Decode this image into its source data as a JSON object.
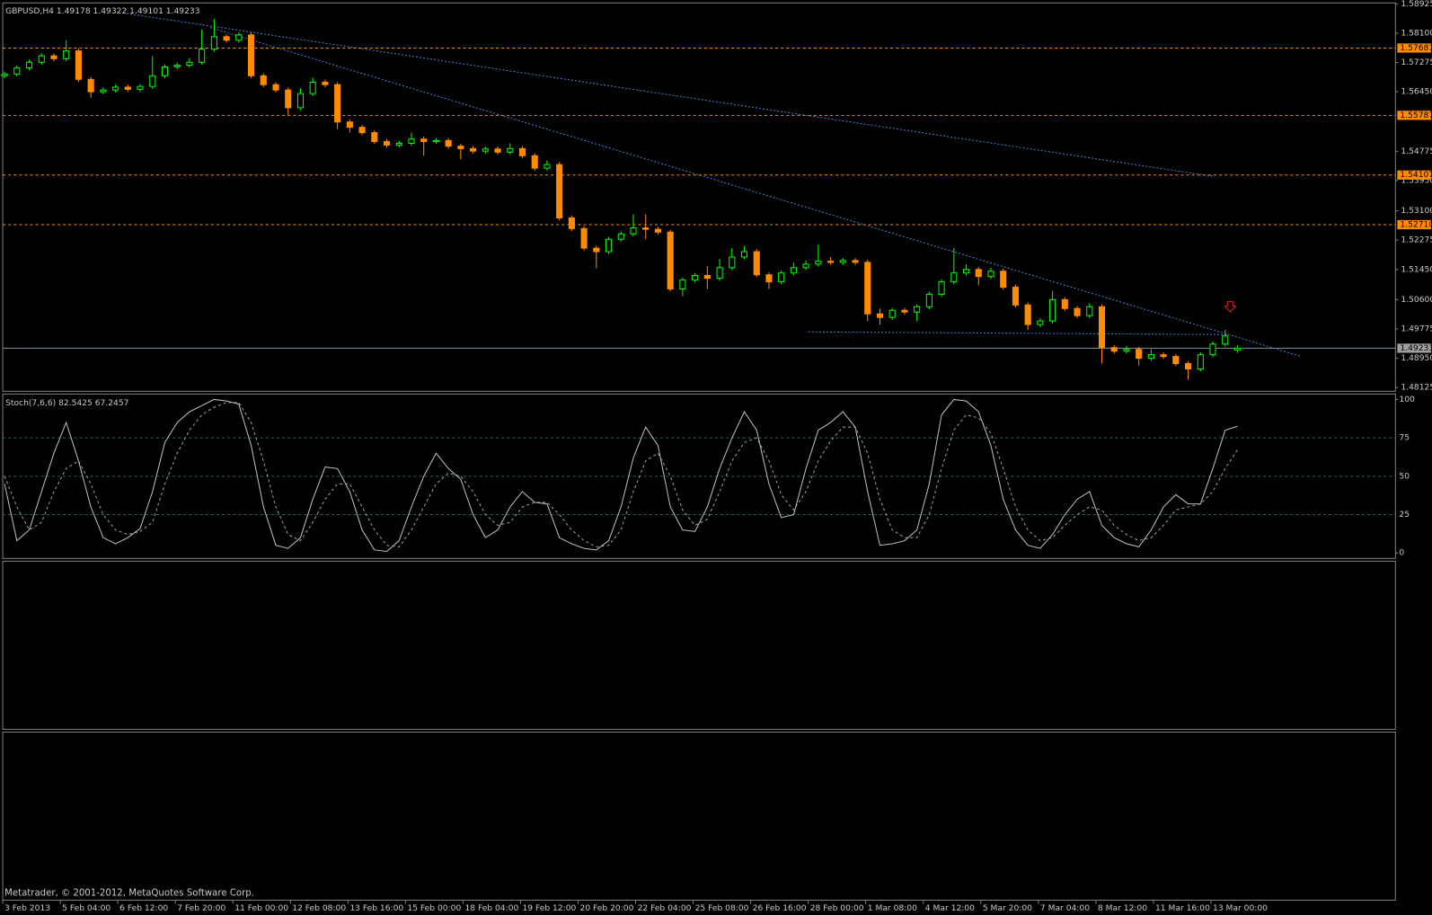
{
  "chart_data": {
    "type": "candlestick",
    "title": "GBPUSD,H4  1.49178 1.49322 1.49101 1.49233",
    "footer": "Metatrader, © 2001-2012, MetaQuotes Software Corp.",
    "bull_color": "#00ff00",
    "bear_color": "#ff8c00",
    "level_color": "#ff8c00",
    "open": [
      1.569,
      1.5695,
      1.5712,
      1.5728,
      1.5746,
      1.5738,
      1.576,
      1.568,
      1.5645,
      1.565,
      1.5658,
      1.5652,
      1.566,
      1.569,
      1.5715,
      1.572,
      1.5728,
      1.5765,
      1.58,
      1.579,
      1.5805,
      1.569,
      1.5665,
      1.565,
      1.56,
      1.564,
      1.5672,
      1.5665,
      1.556,
      1.5545,
      1.553,
      1.5505,
      1.5495,
      1.55,
      1.5512,
      1.5505,
      1.5508,
      1.5492,
      1.5485,
      1.5478,
      1.5484,
      1.5475,
      1.5485,
      1.5465,
      1.543,
      1.544,
      1.529,
      1.526,
      1.5205,
      1.5195,
      1.523,
      1.5245,
      1.5262,
      1.5258,
      1.525,
      1.509,
      1.5115,
      1.5128,
      1.512,
      1.515,
      1.518,
      1.5195,
      1.513,
      1.511,
      1.5135,
      1.515,
      1.516,
      1.5168,
      1.5165,
      1.517,
      1.5165,
      1.502,
      1.501,
      1.503,
      1.5025,
      1.504,
      1.5075,
      1.511,
      1.5135,
      1.5145,
      1.5125,
      1.514,
      1.5095,
      1.5045,
      1.499,
      1.5,
      1.506,
      1.5035,
      1.5015,
      1.504,
      1.4925,
      1.4915,
      1.492,
      1.4895,
      1.4905,
      1.49,
      1.488,
      1.4865,
      1.4905,
      1.4935,
      1.49178
    ],
    "high": [
      1.5702,
      1.5719,
      1.5735,
      1.5753,
      1.5753,
      1.579,
      1.5767,
      1.5687,
      1.5657,
      1.5665,
      1.5665,
      1.5667,
      1.5745,
      1.5722,
      1.5727,
      1.574,
      1.582,
      1.585,
      1.5807,
      1.5812,
      1.5812,
      1.5697,
      1.5672,
      1.5657,
      1.5655,
      1.5685,
      1.5679,
      1.5672,
      1.5567,
      1.5552,
      1.5537,
      1.5512,
      1.5507,
      1.553,
      1.5519,
      1.5515,
      1.5515,
      1.5499,
      1.5492,
      1.5491,
      1.5491,
      1.55,
      1.5492,
      1.5472,
      1.5452,
      1.5447,
      1.5297,
      1.5267,
      1.5212,
      1.5237,
      1.5252,
      1.53,
      1.53,
      1.5265,
      1.5257,
      1.5122,
      1.5135,
      1.5155,
      1.5175,
      1.5205,
      1.521,
      1.5202,
      1.5137,
      1.5142,
      1.5165,
      1.517,
      1.5215,
      1.518,
      1.5177,
      1.5177,
      1.5172,
      1.5035,
      1.5037,
      1.5037,
      1.5047,
      1.5082,
      1.5117,
      1.5205,
      1.516,
      1.5152,
      1.515,
      1.5147,
      1.5102,
      1.5052,
      1.5007,
      1.5085,
      1.5067,
      1.5042,
      1.505,
      1.5047,
      1.4932,
      1.493,
      1.4927,
      1.492,
      1.4912,
      1.4907,
      1.4887,
      1.4912,
      1.4942,
      1.4975,
      1.49322
    ],
    "low": [
      1.5683,
      1.5688,
      1.5705,
      1.5721,
      1.5731,
      1.5731,
      1.5673,
      1.5628,
      1.5638,
      1.5643,
      1.5645,
      1.5645,
      1.5653,
      1.5683,
      1.5708,
      1.5713,
      1.5721,
      1.5758,
      1.5783,
      1.5783,
      1.5683,
      1.5658,
      1.5643,
      1.558,
      1.5593,
      1.5633,
      1.5658,
      1.554,
      1.553,
      1.5523,
      1.5498,
      1.5488,
      1.5488,
      1.5493,
      1.5465,
      1.5498,
      1.5485,
      1.5455,
      1.5471,
      1.5471,
      1.5468,
      1.5468,
      1.5458,
      1.5423,
      1.5423,
      1.5283,
      1.5253,
      1.5198,
      1.5148,
      1.5188,
      1.5223,
      1.5238,
      1.523,
      1.5243,
      1.5083,
      1.507,
      1.5108,
      1.509,
      1.5113,
      1.5143,
      1.5173,
      1.5123,
      1.509,
      1.5103,
      1.5128,
      1.5143,
      1.5153,
      1.5158,
      1.5158,
      1.5158,
      1.5,
      1.499,
      1.5003,
      1.5018,
      1.5,
      1.5033,
      1.5068,
      1.5103,
      1.5128,
      1.51,
      1.5118,
      1.5088,
      1.5038,
      1.4975,
      1.4983,
      1.4993,
      1.5028,
      1.5008,
      1.5008,
      1.488,
      1.4908,
      1.4908,
      1.4875,
      1.4888,
      1.4893,
      1.4873,
      1.4835,
      1.4858,
      1.4898,
      1.4928,
      1.49101
    ],
    "close": [
      1.5695,
      1.5712,
      1.5728,
      1.5746,
      1.5738,
      1.576,
      1.568,
      1.5645,
      1.565,
      1.5658,
      1.5652,
      1.566,
      1.569,
      1.5715,
      1.572,
      1.5728,
      1.5765,
      1.58,
      1.579,
      1.5805,
      1.569,
      1.5665,
      1.565,
      1.56,
      1.564,
      1.5672,
      1.5665,
      1.556,
      1.5545,
      1.553,
      1.5505,
      1.5495,
      1.55,
      1.5512,
      1.5505,
      1.5508,
      1.5492,
      1.5485,
      1.5478,
      1.5484,
      1.5475,
      1.5485,
      1.5465,
      1.543,
      1.544,
      1.529,
      1.526,
      1.5205,
      1.5195,
      1.523,
      1.5245,
      1.5262,
      1.5258,
      1.525,
      1.509,
      1.5115,
      1.5128,
      1.512,
      1.515,
      1.518,
      1.5195,
      1.513,
      1.511,
      1.5135,
      1.515,
      1.516,
      1.5168,
      1.5165,
      1.517,
      1.5165,
      1.502,
      1.501,
      1.503,
      1.5025,
      1.504,
      1.5075,
      1.511,
      1.5135,
      1.5145,
      1.5125,
      1.514,
      1.5095,
      1.5045,
      1.499,
      1.5,
      1.506,
      1.5035,
      1.5015,
      1.504,
      1.4925,
      1.4915,
      1.492,
      1.4895,
      1.4905,
      1.49,
      1.488,
      1.4865,
      1.4905,
      1.4935,
      1.4958,
      1.49233
    ],
    "ylim": [
      1.48125,
      1.58925
    ],
    "yticks": [
      {
        "value": 1.58925,
        "label": "1.58925"
      },
      {
        "value": 1.581,
        "label": "1.58100"
      },
      {
        "value": 1.57275,
        "label": "1.57275"
      },
      {
        "value": 1.5645,
        "label": "1.56450"
      },
      {
        "value": 1.54775,
        "label": "1.54775"
      },
      {
        "value": 1.5395,
        "label": "1.53950"
      },
      {
        "value": 1.531,
        "label": "1.53100"
      },
      {
        "value": 1.52275,
        "label": "1.52275"
      },
      {
        "value": 1.5145,
        "label": "1.51450"
      },
      {
        "value": 1.506,
        "label": "1.50600"
      },
      {
        "value": 1.49775,
        "label": "1.49775"
      },
      {
        "value": 1.4895,
        "label": "1.48950"
      },
      {
        "value": 1.48125,
        "label": "1.48125"
      }
    ],
    "levels": [
      {
        "value": 1.57681,
        "label": "1.57681"
      },
      {
        "value": 1.55787,
        "label": "1.55787"
      },
      {
        "value": 1.54107,
        "label": "1.54107"
      },
      {
        "value": 1.5271,
        "label": "1.52710"
      }
    ],
    "current": {
      "value": 1.49233,
      "label": "1.49233"
    },
    "xlabels": [
      "3 Feb 2013",
      "5 Feb 04:00",
      "6 Feb 12:00",
      "7 Feb 20:00",
      "11 Feb 00:00",
      "12 Feb 08:00",
      "13 Feb 16:00",
      "15 Feb 00:00",
      "18 Feb 04:00",
      "19 Feb 12:00",
      "20 Feb 20:00",
      "22 Feb 04:00",
      "25 Feb 08:00",
      "26 Feb 16:00",
      "28 Feb 00:00",
      "1 Mar 08:00",
      "4 Mar 12:00",
      "5 Mar 20:00",
      "7 Mar 04:00",
      "8 Mar 12:00",
      "11 Mar 16:00",
      "13 Mar 00:00"
    ],
    "indicator": {
      "type": "line",
      "title": "Stoch(7,6,6) 82.5425 67.2457",
      "main_color": "#c0c0c0",
      "signal_color": "#a0a0a0",
      "level_color": "#2f5f5f",
      "ylim": [
        0,
        100
      ],
      "yticks": [
        0,
        25,
        50,
        75,
        100
      ],
      "main": [
        45,
        8,
        15,
        40,
        65,
        85,
        60,
        30,
        10,
        6,
        10,
        16,
        40,
        72,
        85,
        92,
        96,
        100,
        99,
        97,
        70,
        30,
        5,
        3,
        10,
        35,
        56,
        55,
        40,
        15,
        2,
        1,
        8,
        30,
        50,
        65,
        55,
        48,
        25,
        10,
        15,
        30,
        40,
        33,
        32,
        10,
        6,
        3,
        2,
        8,
        30,
        62,
        82,
        70,
        30,
        15,
        14,
        30,
        55,
        75,
        92,
        80,
        45,
        23,
        25,
        55,
        80,
        85,
        92,
        82,
        40,
        5,
        6,
        8,
        15,
        45,
        90,
        100,
        99,
        92,
        70,
        35,
        15,
        5,
        3,
        12,
        25,
        35,
        40,
        18,
        10,
        6,
        4,
        15,
        30,
        38,
        32,
        32,
        55,
        80,
        82.5425
      ],
      "signal": [
        50,
        30,
        15,
        20,
        40,
        55,
        60,
        45,
        25,
        15,
        12,
        14,
        20,
        45,
        65,
        80,
        90,
        95,
        98,
        98,
        85,
        60,
        30,
        12,
        8,
        20,
        35,
        45,
        45,
        30,
        15,
        5,
        4,
        15,
        30,
        45,
        52,
        50,
        40,
        25,
        18,
        20,
        30,
        33,
        33,
        25,
        15,
        8,
        4,
        5,
        15,
        40,
        60,
        65,
        50,
        28,
        18,
        22,
        40,
        60,
        72,
        75,
        60,
        38,
        28,
        40,
        60,
        73,
        82,
        82,
        65,
        35,
        15,
        10,
        10,
        25,
        55,
        80,
        90,
        88,
        78,
        55,
        30,
        15,
        8,
        10,
        18,
        25,
        30,
        28,
        18,
        12,
        8,
        10,
        18,
        28,
        30,
        32,
        40,
        55,
        67.2457
      ]
    }
  }
}
